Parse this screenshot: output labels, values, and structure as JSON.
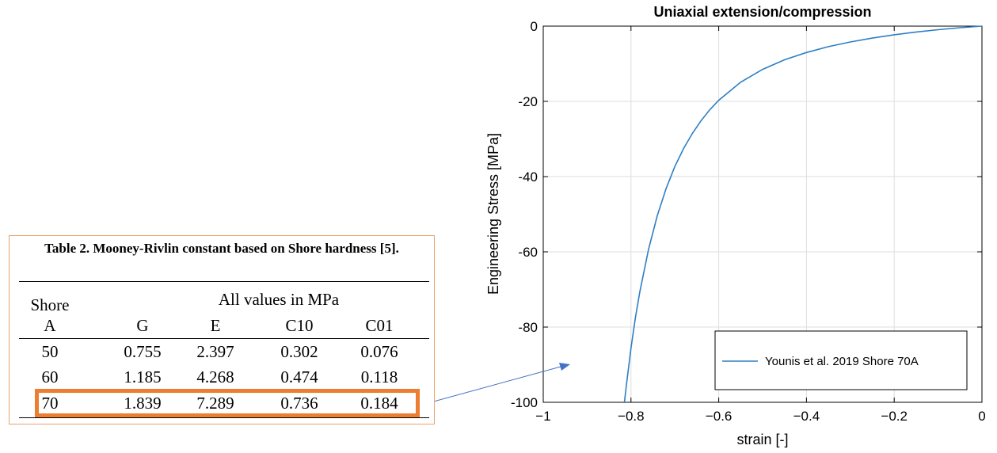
{
  "chart_data": {
    "type": "line",
    "title": "Uniaxial extension/compression",
    "xlabel": "strain [-]",
    "ylabel": "Engineering Stress [MPa]",
    "xlim": [
      -1,
      0
    ],
    "ylim": [
      -100,
      0
    ],
    "xticks": [
      -1,
      -0.8,
      -0.6,
      -0.4,
      -0.2,
      0
    ],
    "xtick_labels": [
      "−1",
      "−0.8",
      "−0.6",
      "−0.4",
      "−0.2",
      "0"
    ],
    "yticks": [
      0,
      -20,
      -40,
      -60,
      -80,
      -100
    ],
    "ytick_labels": [
      "0",
      "-20",
      "-40",
      "-60",
      "-80",
      "-100"
    ],
    "grid": true,
    "legend_position": "bottom-right",
    "series": [
      {
        "name": "Younis et al. 2019 Shore 70A",
        "color": "#2e7fc4",
        "x": [
          -0.815,
          -0.81,
          -0.8,
          -0.79,
          -0.78,
          -0.76,
          -0.74,
          -0.72,
          -0.7,
          -0.68,
          -0.66,
          -0.64,
          -0.62,
          -0.6,
          -0.55,
          -0.5,
          -0.45,
          -0.4,
          -0.35,
          -0.3,
          -0.25,
          -0.2,
          -0.15,
          -0.1,
          -0.05,
          0
        ],
        "y": [
          -100,
          -94.9,
          -85.6,
          -77.6,
          -70.7,
          -59.3,
          -50.4,
          -43.2,
          -37.3,
          -32.5,
          -28.5,
          -25.1,
          -22.2,
          -19.7,
          -14.9,
          -11.5,
          -8.95,
          -7.0,
          -5.46,
          -4.2,
          -3.17,
          -2.3,
          -1.56,
          -0.94,
          -0.43,
          0
        ]
      }
    ]
  },
  "table": {
    "caption": "Table 2. Mooney-Rivlin constant based on Shore hardness [5].",
    "header_row1": {
      "shore": "Shore",
      "units": "All values in  MPa"
    },
    "header_row2": {
      "shore": "A",
      "g": "G",
      "e": "E",
      "c10": "C10",
      "c01": "C01"
    },
    "rows": [
      {
        "shore": "50",
        "g": "0.755",
        "e": "2.397",
        "c10": "0.302",
        "c01": "0.076"
      },
      {
        "shore": "60",
        "g": "1.185",
        "e": "4.268",
        "c10": "0.474",
        "c01": "0.118"
      },
      {
        "shore": "70",
        "g": "1.839",
        "e": "7.289",
        "c10": "0.736",
        "c01": "0.184"
      }
    ],
    "highlight_color": "#ec7d31",
    "panel_border_color": "#e8a36a",
    "arrow_color": "#4472c4"
  }
}
